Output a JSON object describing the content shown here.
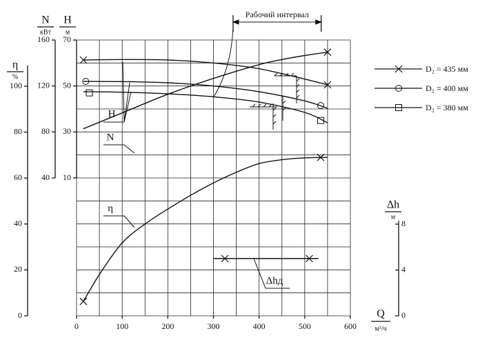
{
  "chart_data": {
    "type": "line",
    "x_axis": {
      "label": "Q",
      "unit": "м³/ч",
      "lim": [
        0,
        600
      ],
      "ticks": [
        0,
        100,
        200,
        300,
        400,
        500,
        600
      ]
    },
    "y_axes": [
      {
        "id": "eta",
        "label": "η",
        "unit": "%",
        "lim": [
          0,
          100
        ],
        "ticks": [
          0,
          20,
          40,
          60,
          80,
          100
        ]
      },
      {
        "id": "N",
        "label": "N",
        "unit": "кВт",
        "lim": [
          40,
          160
        ],
        "ticks": [
          40,
          80,
          120,
          160
        ]
      },
      {
        "id": "H",
        "label": "H",
        "unit": "м",
        "lim": [
          10,
          70
        ],
        "ticks": [
          10,
          30,
          50,
          70
        ]
      },
      {
        "id": "dh",
        "label": "Δh",
        "unit": "м",
        "lim": [
          0,
          8
        ],
        "ticks": [
          0,
          4,
          8
        ]
      }
    ],
    "series": [
      {
        "axis": "H",
        "marker": "cross",
        "x": [
          15,
          100,
          200,
          300,
          400,
          500,
          550
        ],
        "values": [
          61.3,
          61.5,
          61.3,
          60,
          57.5,
          53,
          50.5
        ],
        "marker_x": [
          15,
          550
        ],
        "marker_values": [
          61.3,
          50.5
        ]
      },
      {
        "axis": "H",
        "marker": "circle",
        "x": [
          15,
          100,
          200,
          300,
          400,
          500,
          550
        ],
        "values": [
          52,
          51.9,
          51.4,
          50,
          47.5,
          43.5,
          40.3
        ],
        "marker_x": [
          20,
          535
        ],
        "marker_values": [
          52,
          41.5
        ]
      },
      {
        "axis": "H",
        "marker": "square",
        "x": [
          15,
          100,
          200,
          300,
          400,
          500,
          550
        ],
        "values": [
          47.5,
          47.3,
          46.6,
          45.3,
          43,
          38.5,
          34
        ],
        "marker_x": [
          28,
          535
        ],
        "marker_values": [
          47,
          35
        ]
      },
      {
        "axis": "N",
        "marker": "cross",
        "x": [
          15,
          100,
          200,
          300,
          400,
          450,
          500,
          550
        ],
        "values": [
          82.8,
          96.6,
          112.8,
          126.6,
          138.6,
          143,
          146.5,
          149.4
        ],
        "marker_x": [
          550
        ],
        "marker_values": [
          149.4
        ]
      },
      {
        "axis": "eta",
        "marker": "cross",
        "x": [
          15,
          50,
          100,
          150,
          200,
          250,
          300,
          350,
          400,
          450,
          500,
          550
        ],
        "values": [
          6.3,
          18,
          31.8,
          40,
          46.5,
          52.5,
          57.9,
          62.5,
          66.3,
          68,
          68.8,
          69
        ],
        "marker_x": [
          15,
          535
        ],
        "marker_values": [
          6.3,
          69
        ]
      },
      {
        "axis": "dh",
        "marker": "cross",
        "x": [
          300,
          530
        ],
        "values": [
          5,
          5
        ],
        "marker_x": [
          325,
          510
        ],
        "marker_values": [
          5,
          5
        ]
      }
    ],
    "curve_labels": [
      "H",
      "N",
      "η",
      "Δhд"
    ],
    "working_interval": {
      "label": "Рабочий интервал",
      "x": [
        343,
        536
      ]
    },
    "legend": [
      {
        "label": "D₂ = 435 мм",
        "marker": "cross"
      },
      {
        "label": "D₂ = 400 мм",
        "marker": "circle"
      },
      {
        "label": "D₂ = 380 мм",
        "marker": "square"
      }
    ]
  }
}
